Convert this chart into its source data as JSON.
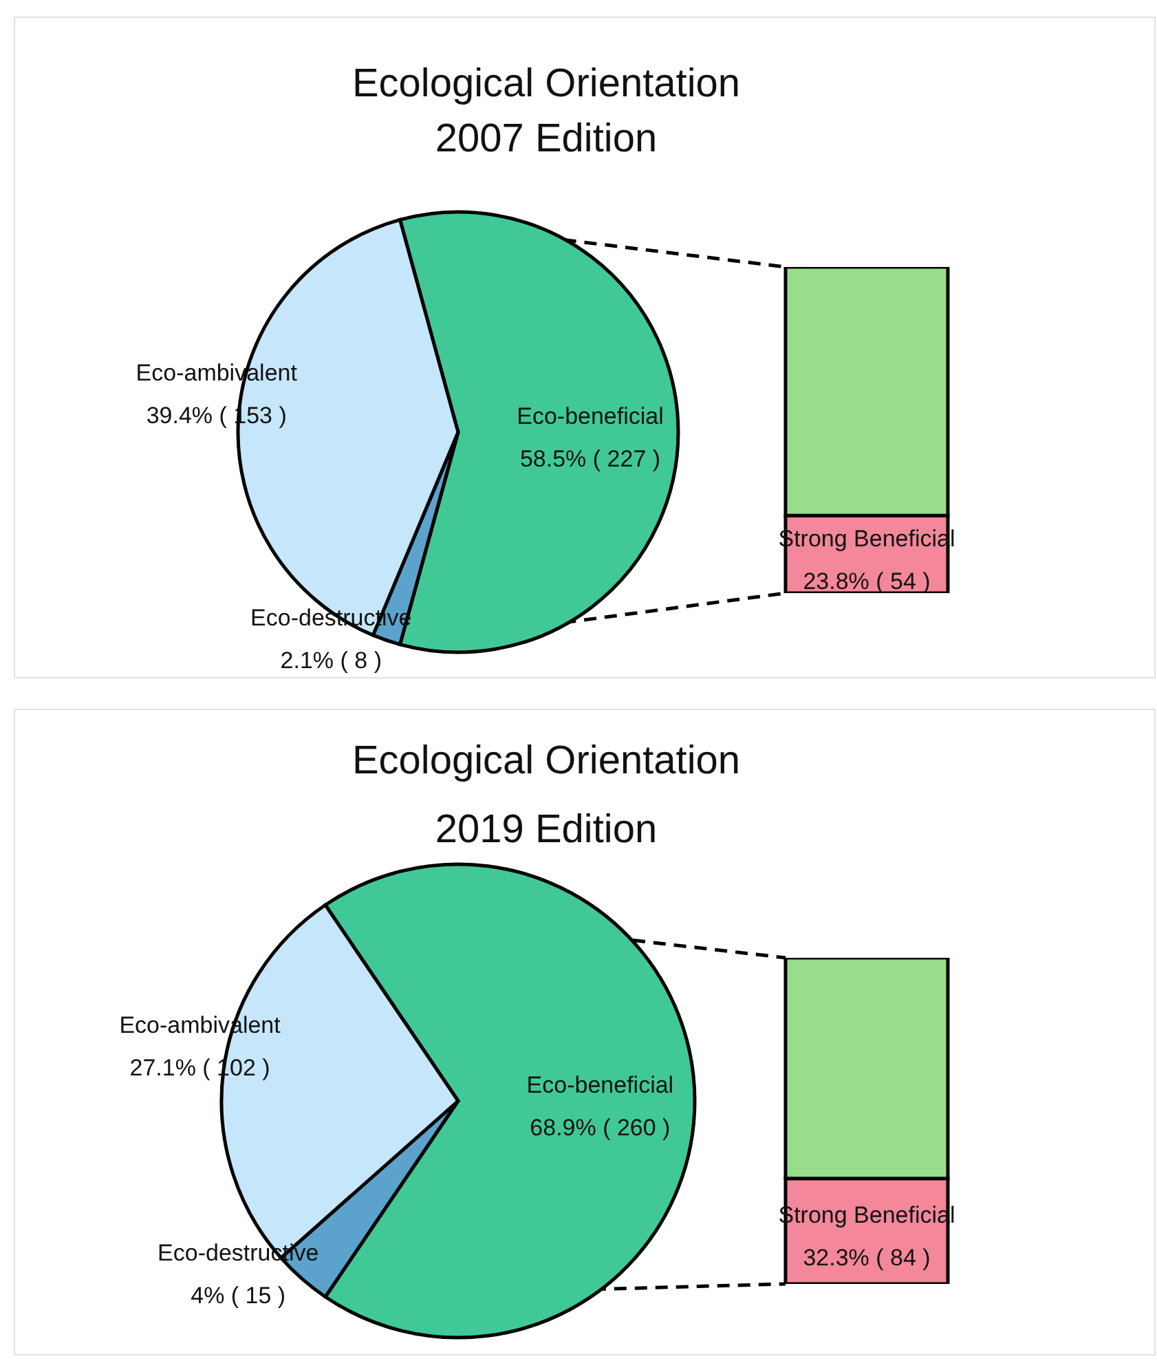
{
  "chart_data": [
    {
      "type": "pie",
      "title": "Ecological Orientation",
      "subtitle": "2007 Edition",
      "categories": [
        "Eco-beneficial",
        "Eco-destructive",
        "Eco-ambivalent"
      ],
      "values": [
        227,
        8,
        153
      ],
      "colors": [
        "#40c997",
        "#5ba3cc",
        "#c5e6fb"
      ],
      "value_labels": [
        "58.5% ( 227 )",
        "2.1% ( 8 )",
        "39.4% ( 153 )"
      ]
    },
    {
      "type": "bar",
      "stacked": true,
      "categories": [
        null
      ],
      "series": [
        {
          "name": "Strong Beneficial",
          "color": "#f4879a",
          "values": [
            54
          ],
          "value_labels": [
            "23.8% ( 54 )"
          ]
        },
        {
          "color": "#98dc8c",
          "values": [
            173
          ]
        }
      ]
    },
    {
      "type": "pie",
      "title": "Ecological Orientation",
      "subtitle": "2019 Edition",
      "categories": [
        "Eco-beneficial",
        "Eco-destructive",
        "Eco-ambivalent"
      ],
      "values": [
        260,
        15,
        102
      ],
      "colors": [
        "#40c997",
        "#5ba3cc",
        "#c5e6fb"
      ],
      "value_labels": [
        "68.9% ( 260 )",
        "4% ( 15 )",
        "27.1% ( 102 )"
      ]
    },
    {
      "type": "bar",
      "stacked": true,
      "categories": [
        null
      ],
      "series": [
        {
          "name": "Strong Beneficial",
          "color": "#f4879a",
          "values": [
            84
          ],
          "value_labels": [
            "32.3% ( 84 )"
          ]
        },
        {
          "color": "#98dc8c",
          "values": [
            176
          ]
        }
      ]
    }
  ]
}
